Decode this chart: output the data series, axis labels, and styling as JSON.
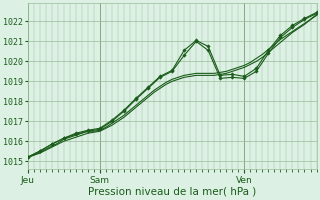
{
  "bg_color": "#ddf0e4",
  "grid_color": "#99bb99",
  "line_color": "#1a5c1a",
  "xlabel": "Pression niveau de la mer( hPa )",
  "xlabel_fontsize": 7.5,
  "ylabel_labels": [
    "1015",
    "1016",
    "1017",
    "1018",
    "1019",
    "1020",
    "1021",
    "1022"
  ],
  "ylim": [
    1014.6,
    1022.9
  ],
  "xlim": [
    0,
    96
  ],
  "day_ticks": [
    0,
    24,
    72
  ],
  "day_labels": [
    "Jeu",
    "Sam",
    "Ven"
  ],
  "smooth1_x": [
    0,
    2,
    4,
    6,
    8,
    10,
    12,
    14,
    16,
    18,
    20,
    22,
    24,
    26,
    28,
    30,
    32,
    34,
    36,
    38,
    40,
    42,
    44,
    46,
    48,
    50,
    52,
    54,
    56,
    58,
    60,
    62,
    64,
    66,
    68,
    70,
    72,
    74,
    76,
    78,
    80,
    82,
    84,
    86,
    88,
    90,
    92,
    94,
    96
  ],
  "smooth1_y": [
    1015.2,
    1015.3,
    1015.4,
    1015.55,
    1015.7,
    1015.85,
    1016.0,
    1016.1,
    1016.2,
    1016.3,
    1016.4,
    1016.45,
    1016.5,
    1016.65,
    1016.8,
    1017.0,
    1017.2,
    1017.45,
    1017.7,
    1017.95,
    1018.2,
    1018.45,
    1018.65,
    1018.85,
    1019.0,
    1019.1,
    1019.2,
    1019.25,
    1019.3,
    1019.3,
    1019.3,
    1019.3,
    1019.35,
    1019.4,
    1019.5,
    1019.6,
    1019.7,
    1019.85,
    1020.0,
    1020.2,
    1020.45,
    1020.7,
    1020.95,
    1021.2,
    1021.45,
    1021.65,
    1021.85,
    1022.1,
    1022.3
  ],
  "smooth2_x": [
    0,
    2,
    4,
    6,
    8,
    10,
    12,
    14,
    16,
    18,
    20,
    22,
    24,
    26,
    28,
    30,
    32,
    34,
    36,
    38,
    40,
    42,
    44,
    46,
    48,
    50,
    52,
    54,
    56,
    58,
    60,
    62,
    64,
    66,
    68,
    70,
    72,
    74,
    76,
    78,
    80,
    82,
    84,
    86,
    88,
    90,
    92,
    94,
    96
  ],
  "smooth2_y": [
    1015.2,
    1015.3,
    1015.45,
    1015.6,
    1015.75,
    1015.9,
    1016.1,
    1016.2,
    1016.3,
    1016.4,
    1016.5,
    1016.5,
    1016.55,
    1016.7,
    1016.9,
    1017.1,
    1017.3,
    1017.55,
    1017.8,
    1018.05,
    1018.3,
    1018.55,
    1018.75,
    1018.95,
    1019.1,
    1019.2,
    1019.3,
    1019.35,
    1019.4,
    1019.4,
    1019.4,
    1019.4,
    1019.45,
    1019.5,
    1019.6,
    1019.7,
    1019.8,
    1019.95,
    1020.15,
    1020.35,
    1020.6,
    1020.85,
    1021.1,
    1021.3,
    1021.5,
    1021.7,
    1021.9,
    1022.1,
    1022.35
  ],
  "marked1_x": [
    0,
    4,
    8,
    12,
    16,
    20,
    24,
    28,
    32,
    36,
    40,
    44,
    48,
    52,
    56,
    60,
    64,
    68,
    72,
    76,
    80,
    84,
    88,
    92,
    96
  ],
  "marked1_y": [
    1015.2,
    1015.5,
    1015.85,
    1016.15,
    1016.35,
    1016.5,
    1016.6,
    1017.0,
    1017.5,
    1018.1,
    1018.65,
    1019.2,
    1019.5,
    1020.3,
    1021.0,
    1020.55,
    1019.15,
    1019.2,
    1019.15,
    1019.5,
    1020.4,
    1021.2,
    1021.7,
    1022.1,
    1022.4
  ],
  "marked2_x": [
    0,
    4,
    8,
    12,
    16,
    20,
    24,
    28,
    32,
    36,
    40,
    44,
    48,
    52,
    56,
    60,
    64,
    68,
    72,
    76,
    80,
    84,
    88,
    92,
    96
  ],
  "marked2_y": [
    1015.2,
    1015.5,
    1015.85,
    1016.15,
    1016.4,
    1016.55,
    1016.65,
    1017.05,
    1017.55,
    1018.15,
    1018.7,
    1019.25,
    1019.55,
    1020.55,
    1021.05,
    1020.75,
    1019.3,
    1019.35,
    1019.25,
    1019.65,
    1020.55,
    1021.3,
    1021.8,
    1022.15,
    1022.45
  ]
}
